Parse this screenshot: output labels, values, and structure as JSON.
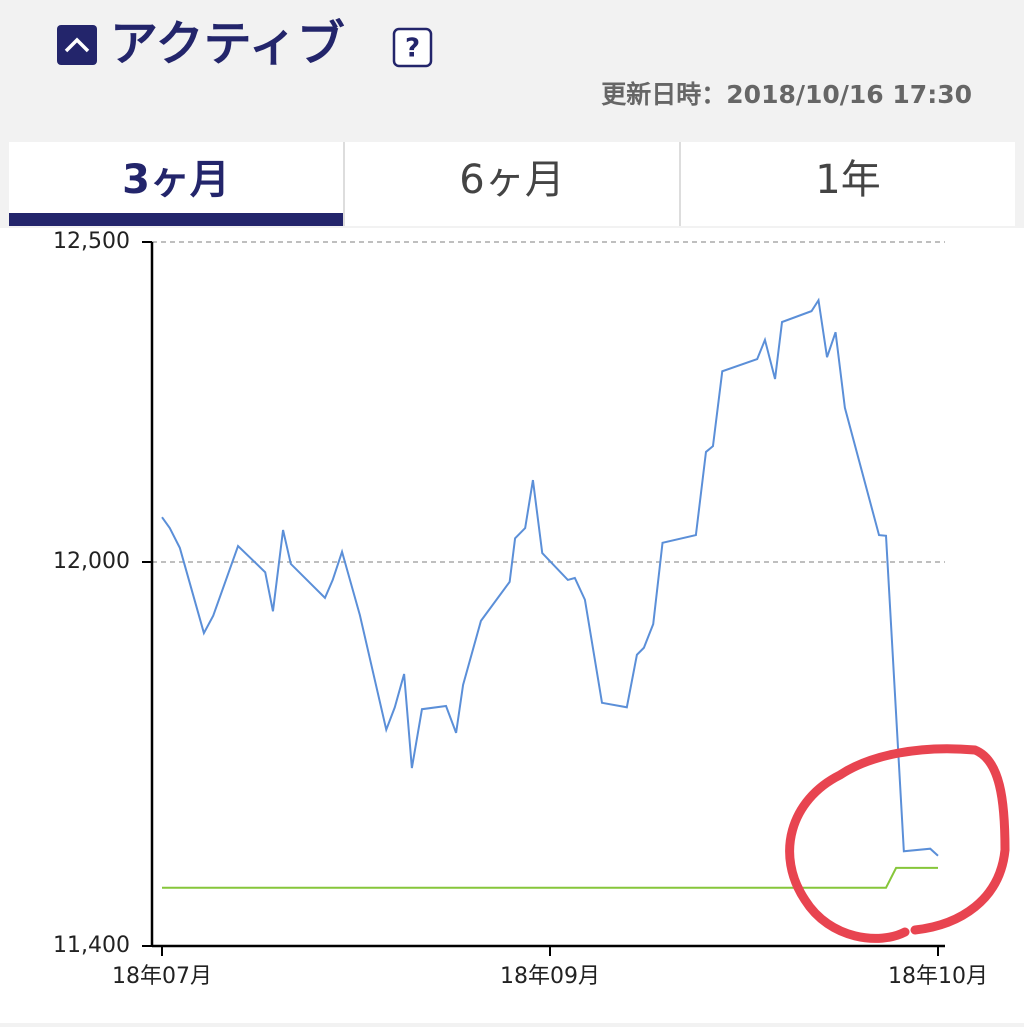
{
  "header": {
    "title": "アクティブ",
    "help": "?",
    "updated": "更新日時：2018/10/16 17:30"
  },
  "tabs": [
    "3ヶ月",
    "6ヶ月",
    "1年"
  ],
  "chart_data": {
    "type": "line",
    "xlim": [
      0,
      100
    ],
    "xticks": [
      {
        "value": 0,
        "label": "18年07月"
      },
      {
        "value": 50,
        "label": "18年09月"
      },
      {
        "value": 100,
        "label": "18年10月"
      }
    ],
    "ylim": [
      11400,
      12500
    ],
    "yticks": [
      {
        "value": 11400,
        "label": "11,400"
      },
      {
        "value": 12000,
        "label": "12,000"
      },
      {
        "value": 12500,
        "label": "12,500"
      }
    ],
    "grid": true,
    "series": [
      {
        "color": "#5b8fd8",
        "x": [
          0,
          1.0,
          2.3,
          5.4,
          6.6,
          9.8,
          13.3,
          14.3,
          15.6,
          16.6,
          21.0,
          22.0,
          23.2,
          25.5,
          28.9,
          30.0,
          31.2,
          32.2,
          33.5,
          36.6,
          37.9,
          38.8,
          41.1,
          44.8,
          45.5,
          46.8,
          47.8,
          49.0,
          52.3,
          53.2,
          54.5,
          56.7,
          59.9,
          61.2,
          62.1,
          63.3,
          64.5,
          68.8,
          70.1,
          71.0,
          72.2,
          76.7,
          77.7,
          79.0,
          79.9,
          83.7,
          84.6,
          85.7,
          86.8,
          88.0,
          92.4,
          93.3,
          95.6,
          99.0,
          100
        ],
        "values": [
          12070,
          12053,
          12022,
          11889,
          11916,
          12025,
          11984,
          11923,
          12050,
          11997,
          11944,
          11972,
          12016,
          11917,
          11738,
          11773,
          11825,
          11678,
          11770,
          11775,
          11733,
          11808,
          11908,
          11969,
          12037,
          12053,
          12128,
          12014,
          11972,
          11975,
          11941,
          11780,
          11773,
          11855,
          11866,
          11903,
          12030,
          12042,
          12172,
          12181,
          12298,
          12317,
          12347,
          12286,
          12375,
          12392,
          12409,
          12320,
          12359,
          12241,
          12042,
          12041,
          11548,
          11552,
          11541
        ]
      },
      {
        "color": "#86c63a",
        "x": [
          0,
          93.3,
          94.6,
          100
        ],
        "values": [
          11491,
          11491,
          11522,
          11522
        ]
      }
    ]
  }
}
